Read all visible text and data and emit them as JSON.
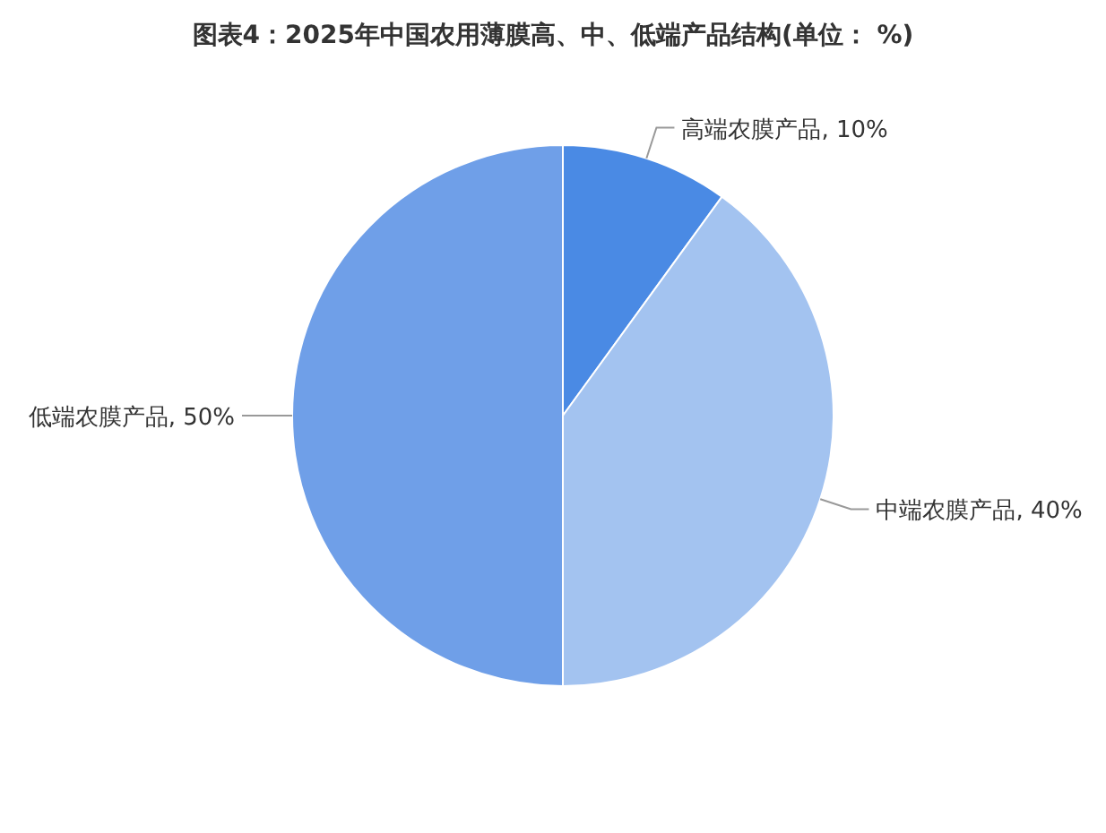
{
  "chart_data": {
    "type": "pie",
    "title": "图表4：2025年中国农用薄膜高、中、低端产品结构(单位： %)",
    "categories": [
      "高端农膜产品",
      "中端农膜产品",
      "低端农膜产品"
    ],
    "values": [
      10,
      40,
      50
    ],
    "value_labels": [
      "10%",
      "40%",
      "50%"
    ],
    "colors": [
      "#4a8ae4",
      "#a3c3f0",
      "#6f9fe8"
    ]
  }
}
